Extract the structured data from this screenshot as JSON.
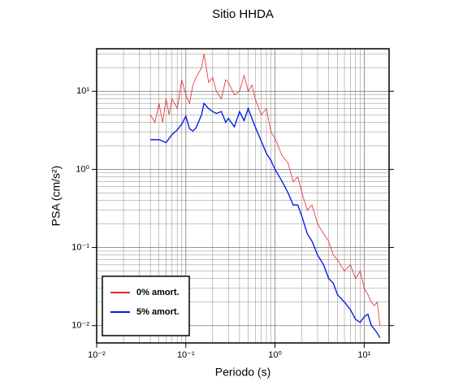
{
  "chart_data": {
    "type": "line",
    "title": "Sitio HHDA",
    "x_label": "Periodo (s)",
    "y_label": "PSA (cm/s²)",
    "log_x": true,
    "log_y": true,
    "grid": true,
    "legend_position": "lower left",
    "x": [
      0.04,
      0.045,
      0.05,
      0.055,
      0.06,
      0.065,
      0.07,
      0.08,
      0.09,
      0.1,
      0.11,
      0.12,
      0.13,
      0.15,
      0.16,
      0.18,
      0.2,
      0.22,
      0.25,
      0.28,
      0.3,
      0.35,
      0.4,
      0.45,
      0.5,
      0.55,
      0.6,
      0.7,
      0.8,
      0.9,
      1.0,
      1.2,
      1.4,
      1.6,
      1.8,
      2.0,
      2.3,
      2.6,
      3.0,
      3.5,
      4,
      4.5,
      5,
      6,
      7,
      8,
      9,
      10,
      11,
      12,
      13,
      14,
      15
    ],
    "series": [
      {
        "name": "0% amort.",
        "color": "#e8262b",
        "width": 0.8,
        "values": [
          5,
          4,
          7,
          4,
          8,
          5,
          8,
          6,
          14,
          9,
          7,
          12,
          15,
          20,
          30,
          13,
          15,
          10,
          8,
          14,
          13,
          9,
          10,
          16,
          10,
          12,
          8,
          5,
          6,
          3,
          2.5,
          1.5,
          1.2,
          0.7,
          0.8,
          0.5,
          0.3,
          0.35,
          0.2,
          0.15,
          0.12,
          0.08,
          0.07,
          0.05,
          0.06,
          0.04,
          0.05,
          0.03,
          0.025,
          0.02,
          0.018,
          0.02,
          0.01
        ]
      },
      {
        "name": "5% amort.",
        "color": "#0a1ee6",
        "width": 1.4,
        "values": [
          2.4,
          2.4,
          2.4,
          2.3,
          2.2,
          2.5,
          2.8,
          3.2,
          3.8,
          4.8,
          3.3,
          3.1,
          3.4,
          5.0,
          7.0,
          6.0,
          5.5,
          5.2,
          5.5,
          4.0,
          4.5,
          3.5,
          5.5,
          4.2,
          6.0,
          4.5,
          3.5,
          2.3,
          1.6,
          1.3,
          1.0,
          0.7,
          0.5,
          0.35,
          0.35,
          0.25,
          0.15,
          0.12,
          0.08,
          0.06,
          0.04,
          0.035,
          0.025,
          0.02,
          0.016,
          0.012,
          0.011,
          0.013,
          0.014,
          0.01,
          0.009,
          0.008,
          0.007
        ]
      }
    ],
    "xlim": [
      0.01,
      19
    ],
    "ylim": [
      0.006,
      35
    ],
    "xticks": [
      {
        "value": 0.01,
        "label": "10⁻²"
      },
      {
        "value": 0.1,
        "label": "10⁻¹"
      },
      {
        "value": 1,
        "label": "10⁰"
      },
      {
        "value": 10,
        "label": "10¹"
      }
    ],
    "yticks": [
      {
        "value": 0.01,
        "label": "10⁻²"
      },
      {
        "value": 0.1,
        "label": "10⁻¹"
      },
      {
        "value": 1,
        "label": "10⁰"
      },
      {
        "value": 10,
        "label": "10¹"
      }
    ]
  }
}
